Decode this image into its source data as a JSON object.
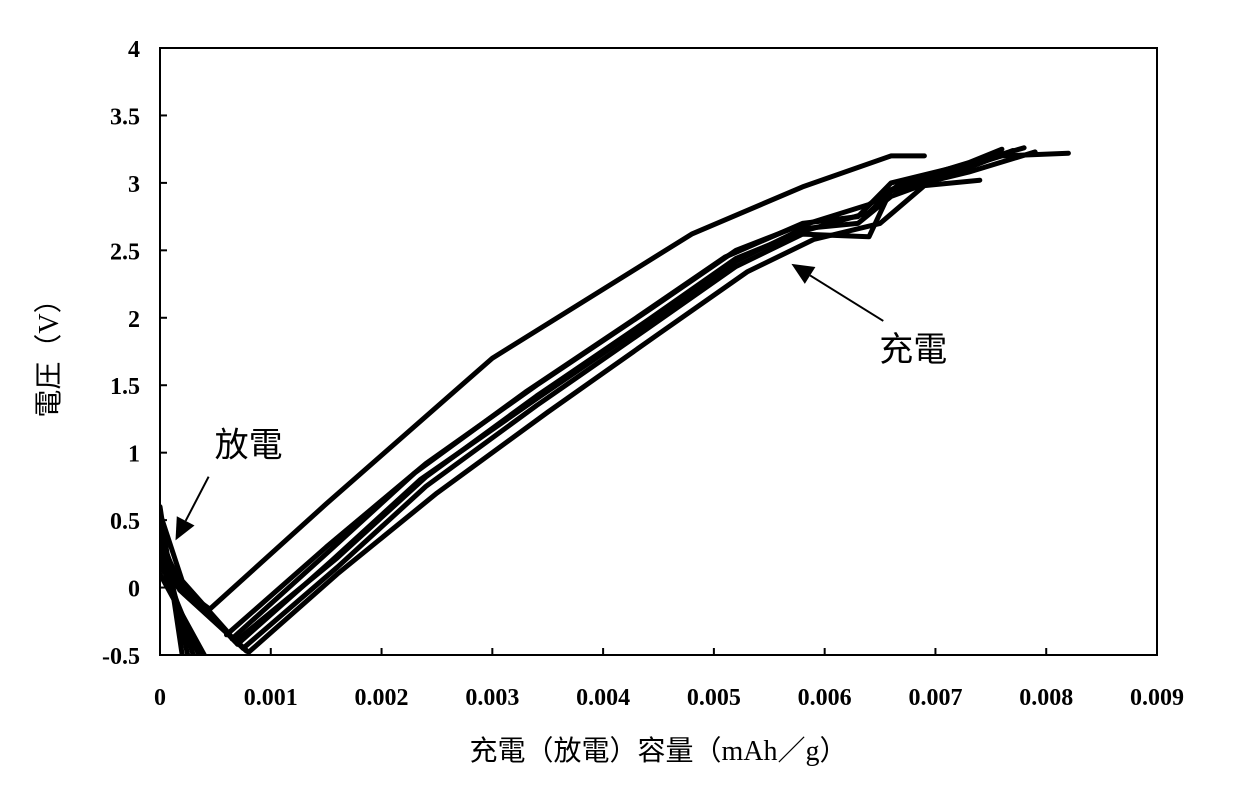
{
  "chart_data": {
    "type": "line",
    "title": "",
    "xlabel": "充電（放電）容量（mAh／g）",
    "ylabel": "電圧（V）",
    "xlim": [
      0,
      0.009
    ],
    "ylim": [
      -0.5,
      4
    ],
    "x_ticks": [
      "0",
      "0.001",
      "0.002",
      "0.003",
      "0.004",
      "0.005",
      "0.006",
      "0.007",
      "0.008",
      "0.009"
    ],
    "y_ticks": [
      "-0.5",
      "0",
      "0.5",
      "1",
      "1.5",
      "2",
      "2.5",
      "3",
      "3.5",
      "4"
    ],
    "grid": false,
    "legend": "none",
    "line_color": "#000000",
    "annotations": [
      {
        "text": "放電",
        "x": 0.0008,
        "y": 0.97,
        "arrow_to": [
          0.00014,
          0.35
        ]
      },
      {
        "text": "充電",
        "x": 0.0068,
        "y": 1.68,
        "arrow_to": [
          0.0057,
          2.4
        ]
      }
    ],
    "series": [
      {
        "points": [
          [
            0.00045,
            -0.16
          ],
          [
            0.0015,
            0.62
          ],
          [
            0.003,
            1.7
          ],
          [
            0.0048,
            2.62
          ],
          [
            0.0058,
            2.97
          ],
          [
            0.0066,
            3.2
          ],
          [
            0.0069,
            3.2
          ]
        ]
      },
      {
        "points": [
          [
            0.00075,
            -0.45
          ],
          [
            0.0016,
            0.15
          ],
          [
            0.0024,
            0.75
          ],
          [
            0.0034,
            1.35
          ],
          [
            0.0044,
            1.92
          ],
          [
            0.0052,
            2.38
          ],
          [
            0.0058,
            2.62
          ],
          [
            0.0064,
            2.6
          ],
          [
            0.0066,
            2.95
          ],
          [
            0.0072,
            3.1
          ],
          [
            0.0076,
            3.2
          ],
          [
            0.0082,
            3.22
          ]
        ]
      },
      {
        "points": [
          [
            0.00065,
            -0.38
          ],
          [
            0.0015,
            0.25
          ],
          [
            0.0023,
            0.85
          ],
          [
            0.0033,
            1.45
          ],
          [
            0.0043,
            2.0
          ],
          [
            0.0051,
            2.45
          ],
          [
            0.0058,
            2.7
          ],
          [
            0.0063,
            2.75
          ],
          [
            0.0066,
            3.0
          ],
          [
            0.0072,
            3.12
          ],
          [
            0.0078,
            3.26
          ]
        ]
      },
      {
        "points": [
          [
            0.0007,
            -0.42
          ],
          [
            0.00155,
            0.2
          ],
          [
            0.00235,
            0.8
          ],
          [
            0.0034,
            1.4
          ],
          [
            0.0044,
            1.96
          ],
          [
            0.0052,
            2.42
          ],
          [
            0.0058,
            2.66
          ],
          [
            0.0063,
            2.7
          ],
          [
            0.0066,
            2.9
          ],
          [
            0.0071,
            3.05
          ],
          [
            0.0077,
            3.24
          ]
        ]
      },
      {
        "points": [
          [
            0.0008,
            -0.48
          ],
          [
            0.0016,
            0.1
          ],
          [
            0.0025,
            0.7
          ],
          [
            0.0035,
            1.3
          ],
          [
            0.0045,
            1.88
          ],
          [
            0.0053,
            2.34
          ],
          [
            0.0059,
            2.58
          ],
          [
            0.0065,
            2.7
          ],
          [
            0.0069,
            2.98
          ],
          [
            0.0074,
            3.02
          ]
        ]
      },
      {
        "points": [
          [
            0.0006,
            -0.35
          ],
          [
            0.0015,
            0.3
          ],
          [
            0.0024,
            0.92
          ],
          [
            0.0034,
            1.5
          ],
          [
            0.0044,
            2.05
          ],
          [
            0.0052,
            2.5
          ],
          [
            0.0057,
            2.66
          ],
          [
            0.0064,
            2.84
          ],
          [
            0.0067,
            3.0
          ],
          [
            0.0073,
            3.15
          ],
          [
            0.0076,
            3.25
          ]
        ]
      },
      {
        "points": [
          [
            0.00068,
            -0.4
          ],
          [
            0.0016,
            0.22
          ],
          [
            0.0024,
            0.82
          ],
          [
            0.0034,
            1.42
          ],
          [
            0.0044,
            1.98
          ],
          [
            0.0052,
            2.44
          ],
          [
            0.0058,
            2.64
          ],
          [
            0.0064,
            2.78
          ],
          [
            0.0066,
            2.94
          ],
          [
            0.0073,
            3.08
          ],
          [
            0.0079,
            3.23
          ]
        ]
      },
      {
        "points": [
          [
            0.0,
            0.6
          ],
          [
            0.0002,
            -0.5
          ]
        ]
      },
      {
        "points": [
          [
            0.0,
            0.45
          ],
          [
            0.00025,
            -0.5
          ]
        ]
      },
      {
        "points": [
          [
            0.0,
            0.3
          ],
          [
            0.0003,
            -0.5
          ]
        ]
      },
      {
        "points": [
          [
            0.0,
            0.2
          ],
          [
            0.00035,
            -0.5
          ]
        ]
      },
      {
        "points": [
          [
            0.0,
            0.1
          ],
          [
            0.0004,
            -0.5
          ]
        ]
      },
      {
        "points": [
          [
            0.0,
            0.55
          ],
          [
            0.0002,
            0.05
          ],
          [
            0.0006,
            -0.32
          ]
        ]
      },
      {
        "points": [
          [
            0.0,
            0.4
          ],
          [
            0.00015,
            0.05
          ],
          [
            0.0007,
            -0.42
          ]
        ]
      },
      {
        "points": [
          [
            0.0,
            0.35
          ],
          [
            0.0002,
            0.0
          ],
          [
            0.00075,
            -0.45
          ]
        ]
      },
      {
        "points": [
          [
            0.0,
            0.25
          ],
          [
            0.00018,
            -0.02
          ],
          [
            0.0008,
            -0.48
          ]
        ]
      },
      {
        "points": [
          [
            0.0,
            0.15
          ],
          [
            0.00022,
            -0.05
          ],
          [
            0.00078,
            -0.47
          ]
        ]
      },
      {
        "points": [
          [
            0.0,
            0.5
          ],
          [
            0.0001,
            0.05
          ],
          [
            0.00045,
            -0.16
          ]
        ]
      }
    ]
  }
}
